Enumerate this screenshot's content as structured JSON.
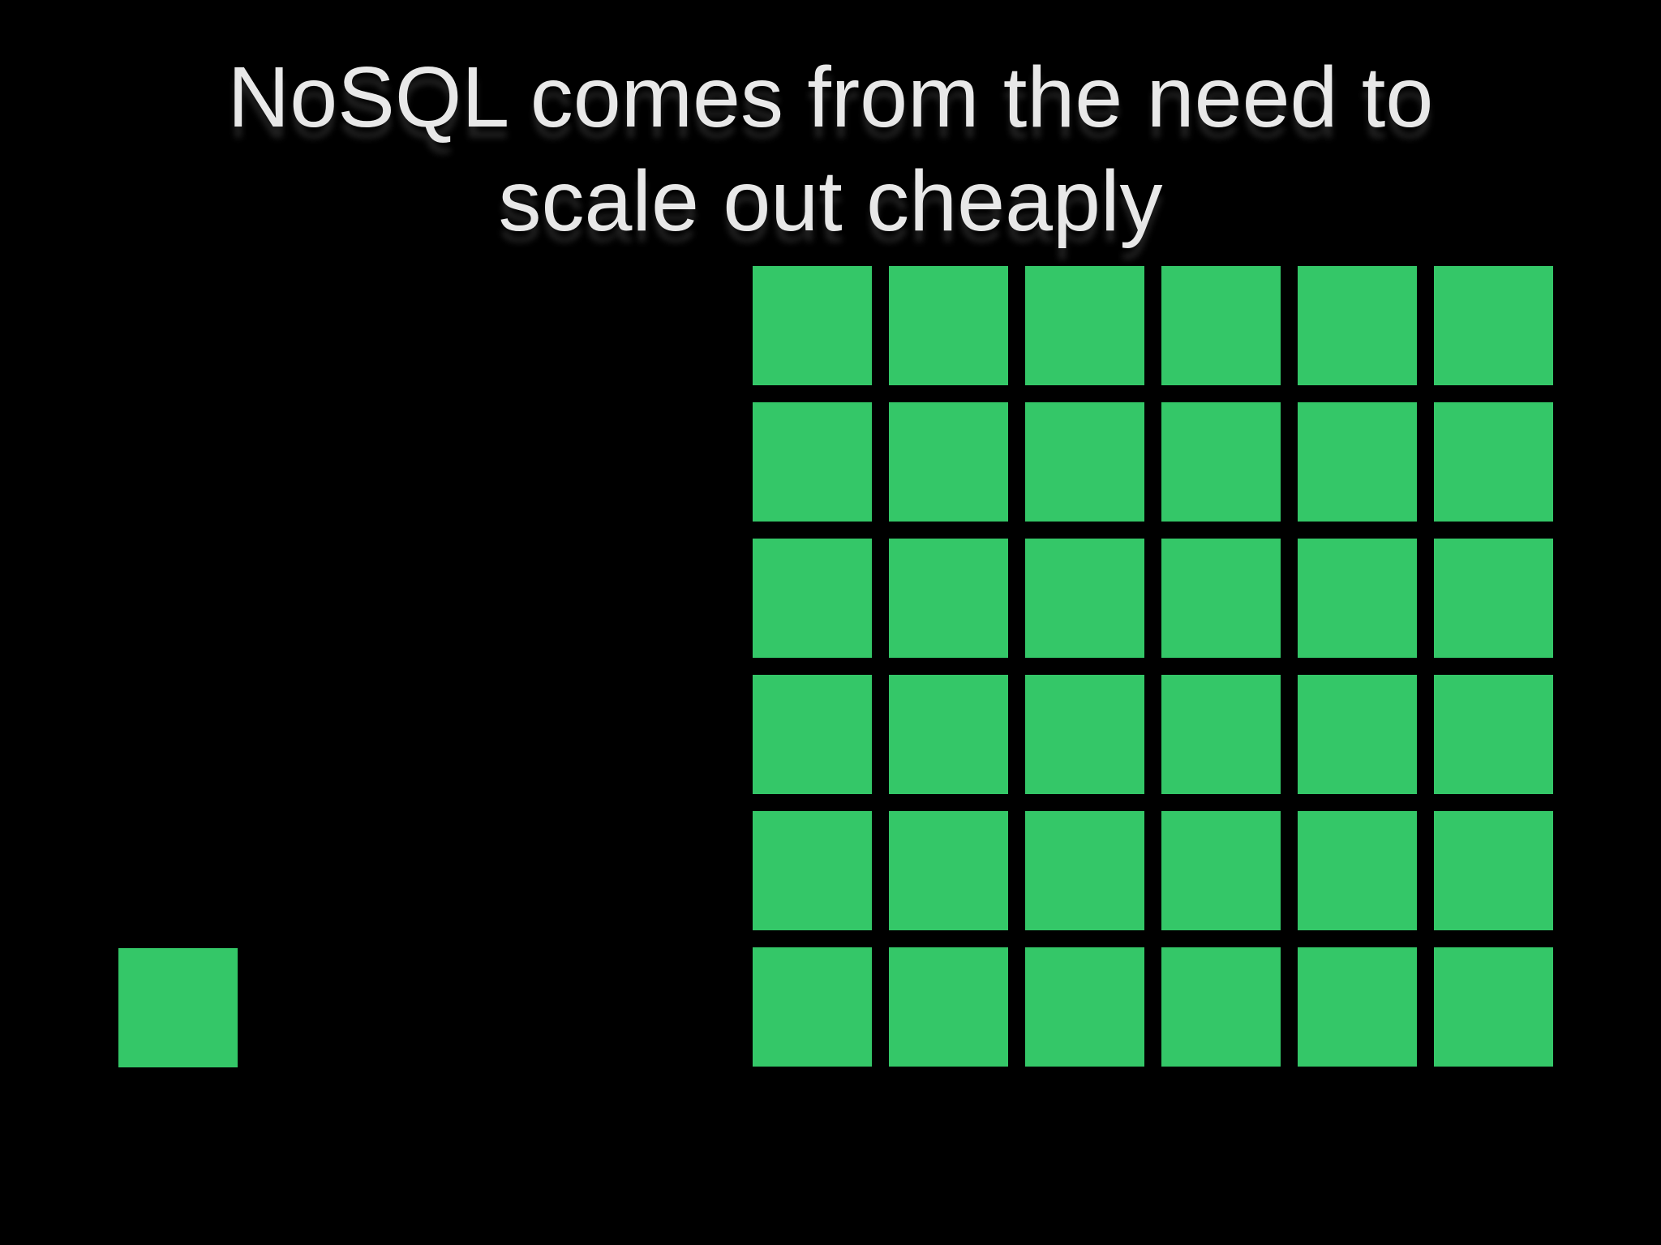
{
  "slide": {
    "title_line1": "NoSQL comes from the need to",
    "title_line2": "scale out cheaply"
  },
  "colors": {
    "background": "#000000",
    "title_text": "#e8e8e8",
    "square_green": "#34c768"
  },
  "single_square": {
    "count": 1
  },
  "grid": {
    "rows": 6,
    "cols": 6,
    "count": 36
  }
}
